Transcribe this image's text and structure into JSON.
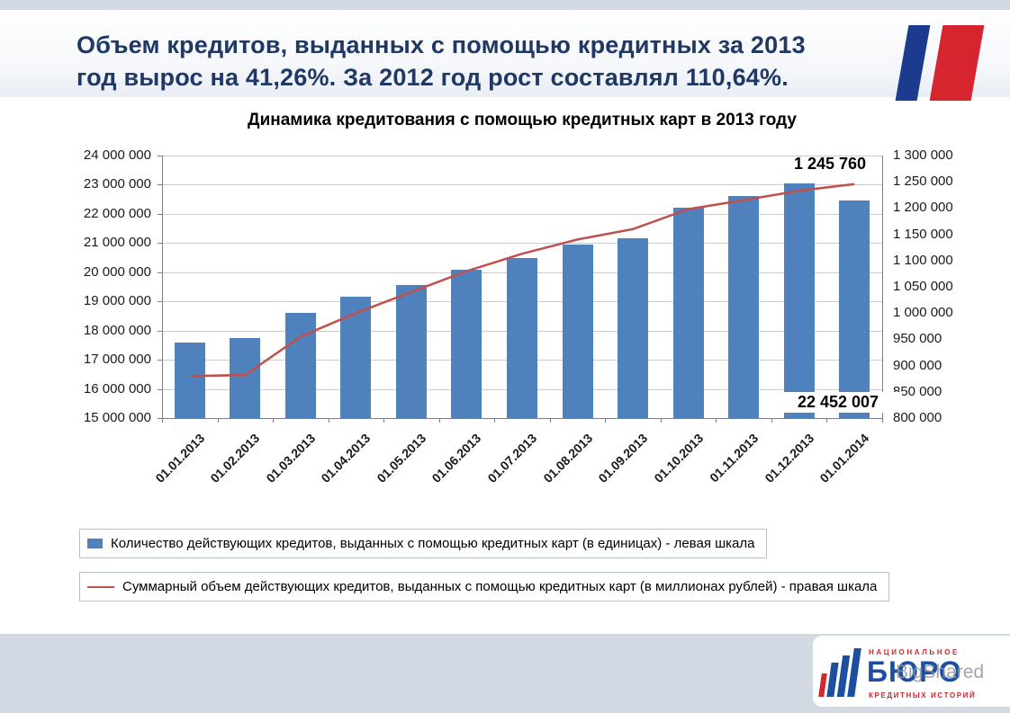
{
  "header": {
    "title": "Объем кредитов, выданных с помощью кредитных за 2013\nгод вырос на 41,26%. За 2012 год рост составлял 110,64%."
  },
  "chart_data": {
    "type": "bar",
    "subtype": "combo-bar-line",
    "title": "Динамика кредитования с помощью кредитных карт в 2013 году",
    "categories": [
      "01.01.2013",
      "01.02.2013",
      "01.03.2013",
      "01.04.2013",
      "01.05.2013",
      "01.06.2013",
      "01.07.2013",
      "01.08.2013",
      "01.09.2013",
      "01.10.2013",
      "01.11.2013",
      "01.12.2013",
      "01.01.2014"
    ],
    "series": [
      {
        "name": "Количество действующих кредитов, выданных с помощью кредитных карт (в единицах) - левая шкала",
        "type": "bar",
        "axis": "left",
        "color": "#4f81bd",
        "values": [
          17600000,
          17750000,
          18600000,
          19150000,
          19550000,
          20100000,
          20500000,
          20950000,
          21150000,
          22200000,
          22600000,
          23050000,
          22452007
        ]
      },
      {
        "name": "Суммарный объем действующих кредитов, выданных с помощью кредитных карт (в миллионах рублей) - правая шкала",
        "type": "line",
        "axis": "right",
        "color": "#c0504d",
        "values": [
          880000,
          882000,
          955000,
          1000000,
          1040000,
          1080000,
          1113000,
          1140000,
          1160000,
          1198000,
          1215000,
          1233000,
          1245760
        ]
      }
    ],
    "left_axis": {
      "min": 15000000,
      "max": 24000000,
      "step": 1000000,
      "tick_labels": [
        "24 000 000",
        "23 000 000",
        "22 000 000",
        "21 000 000",
        "20 000 000",
        "19 000 000",
        "18 000 000",
        "17 000 000",
        "16 000 000",
        "15 000 000"
      ]
    },
    "right_axis": {
      "min": 800000,
      "max": 1300000,
      "step": 50000,
      "tick_labels": [
        "1 300 000",
        "1 250 000",
        "1 200 000",
        "1 150 000",
        "1 100 000",
        "1 050 000",
        "1 000 000",
        "950 000",
        "900 000",
        "850 000",
        "800 000"
      ]
    },
    "annotations": [
      {
        "text": "1 245 760"
      },
      {
        "text": "22 452 007"
      }
    ],
    "grid": true,
    "legend_position": "bottom"
  },
  "footer_logo": {
    "top_text": "НАЦИОНАЛЬНОЕ",
    "main_text": "БЮРО",
    "bottom_text": "КРЕДИТНЫХ ИСТОРИЙ",
    "watermark": "BigShared"
  },
  "colors": {
    "header_text": "#1f3864",
    "flag_blue": "#1c3b8e",
    "flag_red": "#d6252e",
    "logo_blue": "#1d4fa1",
    "logo_red": "#d6252e",
    "page_bg": "#d3d9e2"
  }
}
